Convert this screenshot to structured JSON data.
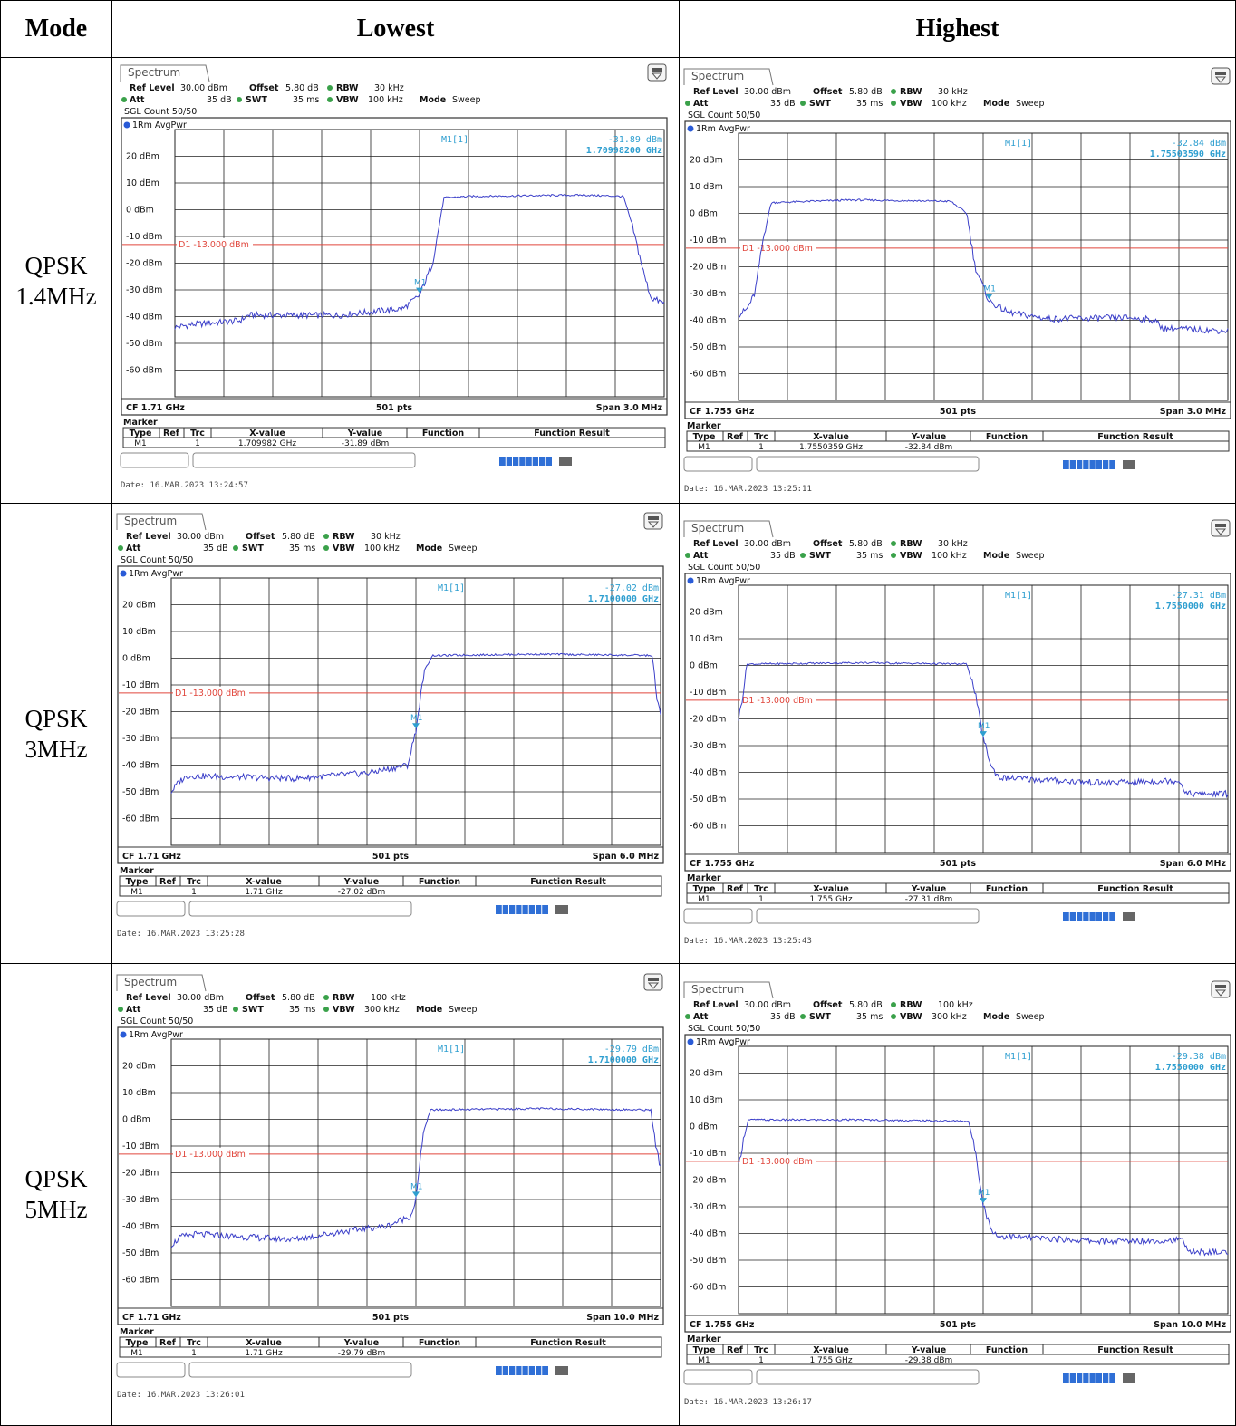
{
  "header": {
    "mode": "Mode",
    "lowest": "Lowest",
    "highest": "Highest"
  },
  "colors": {
    "trace": "#3b3fc9",
    "limit": "#e0463c",
    "marker": "#2f9fd0",
    "bar": "#2f6fd6",
    "grid": "#000000"
  },
  "rows": [
    {
      "mode": "QPSK\n1.4MHz",
      "panels": [
        {
          "tab": "Spectrum",
          "settings": {
            "ref_level_label": "Ref Level",
            "ref_level": "30.00 dBm",
            "offset_label": "Offset",
            "offset": "5.80 dB",
            "rbw_label": "RBW",
            "rbw": "30 kHz",
            "att_label": "Att",
            "att": "35 dB",
            "swt_label": "SWT",
            "swt": "35 ms",
            "vbw_label": "VBW",
            "vbw": "100 kHz",
            "mode_label": "Mode",
            "mode": "Sweep",
            "sgl": "SGL Count 50/50"
          },
          "trace_label": "1Rm AvgPwr",
          "marker_readout": {
            "name": "M1[1]",
            "level": "-31.89 dBm",
            "freq": "1.70998200 GHz"
          },
          "limit_label": "D1 -13.000 dBm",
          "y_ticks": [
            "20 dBm",
            "10 dBm",
            "0 dBm",
            "-10 dBm",
            "-20 dBm",
            "-30 dBm",
            "-40 dBm",
            "-50 dBm",
            "-60 dBm"
          ],
          "footer": {
            "cf": "CF 1.71 GHz",
            "pts": "501 pts",
            "span": "Span 3.0 MHz"
          },
          "marker_table": {
            "title": "Marker",
            "headers": [
              "Type",
              "Ref",
              "Trc",
              "X-value",
              "Y-value",
              "Function",
              "Function Result"
            ],
            "row": [
              "M1",
              "",
              "1",
              "1.709982 GHz",
              "-31.89 dBm",
              "",
              ""
            ]
          },
          "date": "Date: 16.MAR.2023  13:24:57",
          "chart_data": {
            "type": "line",
            "xlabel": "",
            "ylabel": "",
            "x_range": [
              -1.5,
              1.5
            ],
            "ylim": [
              -70,
              30
            ],
            "limit_line": -13,
            "marker": {
              "x": 0.0,
              "y": -31.89
            },
            "x": [
              -1.5,
              -1.1,
              -0.95,
              -0.1,
              0.0,
              0.1,
              0.15,
              1.5
            ],
            "values": [
              -44,
              -41,
              -39.5,
              -37,
              -32,
              -20,
              4.5,
              5.5
            ],
            "series": [
              {
                "name": "",
                "x": [
                  -1.5,
                  -1.4,
                  -1.1,
                  -1.05,
                  -0.5,
                  -0.1,
                  0.0,
                  0.08,
                  0.15,
                  0.3,
                  1.0,
                  1.25,
                  1.3,
                  1.38,
                  1.42,
                  1.5
                ],
                "y": [
                  -44,
                  -43,
                  -41.5,
                  -39.5,
                  -39.5,
                  -37,
                  -32,
                  -20,
                  4.5,
                  5,
                  5.5,
                  5,
                  -5,
                  -25,
                  -33,
                  -35
                ]
              }
            ]
          }
        },
        {
          "tab": "Spectrum",
          "settings": {
            "ref_level_label": "Ref Level",
            "ref_level": "30.00 dBm",
            "offset_label": "Offset",
            "offset": "5.80 dB",
            "rbw_label": "RBW",
            "rbw": "30 kHz",
            "att_label": "Att",
            "att": "35 dB",
            "swt_label": "SWT",
            "swt": "35 ms",
            "vbw_label": "VBW",
            "vbw": "100 kHz",
            "mode_label": "Mode",
            "mode": "Sweep",
            "sgl": "SGL Count 50/50"
          },
          "trace_label": "1Rm AvgPwr",
          "marker_readout": {
            "name": "M1[1]",
            "level": "-32.84 dBm",
            "freq": "1.75503590 GHz"
          },
          "limit_label": "D1 -13.000 dBm",
          "y_ticks": [
            "20 dBm",
            "10 dBm",
            "0 dBm",
            "-10 dBm",
            "-20 dBm",
            "-30 dBm",
            "-40 dBm",
            "-50 dBm",
            "-60 dBm"
          ],
          "footer": {
            "cf": "CF 1.755 GHz",
            "pts": "501 pts",
            "span": "Span 3.0 MHz"
          },
          "marker_table": {
            "title": "Marker",
            "headers": [
              "Type",
              "Ref",
              "Trc",
              "X-value",
              "Y-value",
              "Function",
              "Function Result"
            ],
            "row": [
              "M1",
              "",
              "1",
              "1.7550359 GHz",
              "-32.84 dBm",
              "",
              ""
            ]
          },
          "date": "Date: 16.MAR.2023  13:25:11",
          "chart_data": {
            "type": "line",
            "xlabel": "",
            "ylabel": "",
            "x_range": [
              -1.5,
              1.5
            ],
            "ylim": [
              -70,
              30
            ],
            "limit_line": -13,
            "marker": {
              "x": 0.036,
              "y": -32.84
            },
            "series": [
              {
                "name": "",
                "x": [
                  -1.5,
                  -1.45,
                  -1.4,
                  -1.35,
                  -1.3,
                  -0.8,
                  -0.2,
                  -0.1,
                  -0.05,
                  0.036,
                  0.15,
                  0.4,
                  0.9,
                  1.05,
                  1.1,
                  1.5
                ],
                "y": [
                  -38,
                  -36,
                  -30,
                  -10,
                  4,
                  5,
                  4.5,
                  0,
                  -20,
                  -32.84,
                  -37,
                  -39.5,
                  -39,
                  -40,
                  -43,
                  -44
                ]
              }
            ]
          }
        }
      ]
    },
    {
      "mode": "QPSK\n3MHz",
      "panels": [
        {
          "tab": "Spectrum",
          "settings": {
            "ref_level_label": "Ref Level",
            "ref_level": "30.00 dBm",
            "offset_label": "Offset",
            "offset": "5.80 dB",
            "rbw_label": "RBW",
            "rbw": "30 kHz",
            "att_label": "Att",
            "att": "35 dB",
            "swt_label": "SWT",
            "swt": "35 ms",
            "vbw_label": "VBW",
            "vbw": "100 kHz",
            "mode_label": "Mode",
            "mode": "Sweep",
            "sgl": "SGL Count 50/50"
          },
          "trace_label": "1Rm AvgPwr",
          "marker_readout": {
            "name": "M1[1]",
            "level": "-27.02 dBm",
            "freq": "1.7100000 GHz"
          },
          "limit_label": "D1 -13.000 dBm",
          "y_ticks": [
            "20 dBm",
            "10 dBm",
            "0 dBm",
            "-10 dBm",
            "-20 dBm",
            "-30 dBm",
            "-40 dBm",
            "-50 dBm",
            "-60 dBm"
          ],
          "footer": {
            "cf": "CF 1.71 GHz",
            "pts": "501 pts",
            "span": "Span 6.0 MHz"
          },
          "marker_table": {
            "title": "Marker",
            "headers": [
              "Type",
              "Ref",
              "Trc",
              "X-value",
              "Y-value",
              "Function",
              "Function Result"
            ],
            "row": [
              "M1",
              "",
              "1",
              "1.71 GHz",
              "-27.02 dBm",
              "",
              ""
            ]
          },
          "date": "Date: 16.MAR.2023  13:25:28",
          "chart_data": {
            "type": "line",
            "xlabel": "",
            "ylabel": "",
            "x_range": [
              -3,
              3
            ],
            "ylim": [
              -70,
              30
            ],
            "limit_line": -13,
            "marker": {
              "x": 0.0,
              "y": -27.02
            },
            "series": [
              {
                "name": "",
                "x": [
                  -3,
                  -2.9,
                  -2.8,
                  -1.5,
                  -0.6,
                  -0.1,
                  0.0,
                  0.1,
                  0.2,
                  1.5,
                  2.9,
                  2.95,
                  3.0
                ],
                "y": [
                  -50,
                  -46,
                  -44,
                  -45,
                  -43,
                  -40,
                  -27,
                  -5,
                  1,
                  1.5,
                  1,
                  -15,
                  -20
                ]
              }
            ]
          }
        },
        {
          "tab": "Spectrum",
          "settings": {
            "ref_level_label": "Ref Level",
            "ref_level": "30.00 dBm",
            "offset_label": "Offset",
            "offset": "5.80 dB",
            "rbw_label": "RBW",
            "rbw": "30 kHz",
            "att_label": "Att",
            "att": "35 dB",
            "swt_label": "SWT",
            "swt": "35 ms",
            "vbw_label": "VBW",
            "vbw": "100 kHz",
            "mode_label": "Mode",
            "mode": "Sweep",
            "sgl": "SGL Count 50/50"
          },
          "trace_label": "1Rm AvgPwr",
          "marker_readout": {
            "name": "M1[1]",
            "level": "-27.31 dBm",
            "freq": "1.7550000 GHz"
          },
          "limit_label": "D1 -13.000 dBm",
          "y_ticks": [
            "20 dBm",
            "10 dBm",
            "0 dBm",
            "-10 dBm",
            "-20 dBm",
            "-30 dBm",
            "-40 dBm",
            "-50 dBm",
            "-60 dBm"
          ],
          "footer": {
            "cf": "CF 1.755 GHz",
            "pts": "501 pts",
            "span": "Span 6.0 MHz"
          },
          "marker_table": {
            "title": "Marker",
            "headers": [
              "Type",
              "Ref",
              "Trc",
              "X-value",
              "Y-value",
              "Function",
              "Function Result"
            ],
            "row": [
              "M1",
              "",
              "1",
              "1.755 GHz",
              "-27.31 dBm",
              "",
              ""
            ]
          },
          "date": "Date: 16.MAR.2023  13:25:43",
          "chart_data": {
            "type": "line",
            "xlabel": "",
            "ylabel": "",
            "x_range": [
              -3,
              3
            ],
            "ylim": [
              -70,
              30
            ],
            "limit_line": -13,
            "marker": {
              "x": 0.0,
              "y": -27.31
            },
            "series": [
              {
                "name": "",
                "x": [
                  -3,
                  -2.95,
                  -2.9,
                  -1.5,
                  -0.2,
                  -0.1,
                  0.0,
                  0.1,
                  0.2,
                  1.5,
                  2.4,
                  2.5,
                  3.0
                ],
                "y": [
                  -20,
                  -12,
                  0.5,
                  1,
                  0.5,
                  -10,
                  -27,
                  -38,
                  -42,
                  -44,
                  -43,
                  -48,
                  -48
                ]
              }
            ]
          }
        }
      ]
    },
    {
      "mode": "QPSK\n5MHz",
      "panels": [
        {
          "tab": "Spectrum",
          "settings": {
            "ref_level_label": "Ref Level",
            "ref_level": "30.00 dBm",
            "offset_label": "Offset",
            "offset": "5.80 dB",
            "rbw_label": "RBW",
            "rbw": "100 kHz",
            "att_label": "Att",
            "att": "35 dB",
            "swt_label": "SWT",
            "swt": "35 ms",
            "vbw_label": "VBW",
            "vbw": "300 kHz",
            "mode_label": "Mode",
            "mode": "Sweep",
            "sgl": "SGL Count 50/50"
          },
          "trace_label": "1Rm AvgPwr",
          "marker_readout": {
            "name": "M1[1]",
            "level": "-29.79 dBm",
            "freq": "1.7100000 GHz"
          },
          "limit_label": "D1 -13.000 dBm",
          "y_ticks": [
            "20 dBm",
            "10 dBm",
            "0 dBm",
            "-10 dBm",
            "-20 dBm",
            "-30 dBm",
            "-40 dBm",
            "-50 dBm",
            "-60 dBm"
          ],
          "footer": {
            "cf": "CF 1.71 GHz",
            "pts": "501 pts",
            "span": "Span 10.0 MHz"
          },
          "marker_table": {
            "title": "Marker",
            "headers": [
              "Type",
              "Ref",
              "Trc",
              "X-value",
              "Y-value",
              "Function",
              "Function Result"
            ],
            "row": [
              "M1",
              "",
              "1",
              "1.71 GHz",
              "-29.79 dBm",
              "",
              ""
            ]
          },
          "date": "Date: 16.MAR.2023  13:26:01",
          "chart_data": {
            "type": "line",
            "xlabel": "",
            "ylabel": "",
            "x_range": [
              -5,
              5
            ],
            "ylim": [
              -70,
              30
            ],
            "limit_line": -13,
            "marker": {
              "x": 0.0,
              "y": -29.79
            },
            "series": [
              {
                "name": "",
                "x": [
                  -5,
                  -4.8,
                  -4.5,
                  -2.5,
                  -1.5,
                  -0.6,
                  -0.1,
                  0.0,
                  0.15,
                  0.3,
                  2.5,
                  4.8,
                  4.9,
                  5.0
                ],
                "y": [
                  -47,
                  -44,
                  -43,
                  -45,
                  -42,
                  -40,
                  -36,
                  -30,
                  -5,
                  3.5,
                  4,
                  3.5,
                  -10,
                  -18
                ]
              }
            ]
          }
        },
        {
          "tab": "Spectrum",
          "settings": {
            "ref_level_label": "Ref Level",
            "ref_level": "30.00 dBm",
            "offset_label": "Offset",
            "offset": "5.80 dB",
            "rbw_label": "RBW",
            "rbw": "100 kHz",
            "att_label": "Att",
            "att": "35 dB",
            "swt_label": "SWT",
            "swt": "35 ms",
            "vbw_label": "VBW",
            "vbw": "300 kHz",
            "mode_label": "Mode",
            "mode": "Sweep",
            "sgl": "SGL Count 50/50"
          },
          "trace_label": "1Rm AvgPwr",
          "marker_readout": {
            "name": "M1[1]",
            "level": "-29.38 dBm",
            "freq": "1.7550000 GHz"
          },
          "limit_label": "D1 -13.000 dBm",
          "y_ticks": [
            "20 dBm",
            "10 dBm",
            "0 dBm",
            "-10 dBm",
            "-20 dBm",
            "-30 dBm",
            "-40 dBm",
            "-50 dBm",
            "-60 dBm"
          ],
          "footer": {
            "cf": "CF 1.755 GHz",
            "pts": "501 pts",
            "span": "Span 10.0 MHz"
          },
          "marker_table": {
            "title": "Marker",
            "headers": [
              "Type",
              "Ref",
              "Trc",
              "X-value",
              "Y-value",
              "Function",
              "Function Result"
            ],
            "row": [
              "M1",
              "",
              "1",
              "1.755 GHz",
              "-29.38 dBm",
              "",
              ""
            ]
          },
          "date": "Date: 16.MAR.2023  13:26:17",
          "chart_data": {
            "type": "line",
            "xlabel": "",
            "ylabel": "",
            "x_range": [
              -5,
              5
            ],
            "ylim": [
              -70,
              30
            ],
            "limit_line": -13,
            "marker": {
              "x": 0.0,
              "y": -29.38
            },
            "series": [
              {
                "name": "",
                "x": [
                  -5,
                  -4.9,
                  -4.8,
                  -2.5,
                  -0.3,
                  -0.15,
                  0.0,
                  0.15,
                  0.3,
                  2.5,
                  4.1,
                  4.2,
                  5.0
                ],
                "y": [
                  -15,
                  -5,
                  2.5,
                  2.5,
                  2,
                  -10,
                  -29,
                  -38,
                  -41,
                  -43,
                  -42.5,
                  -47,
                  -47
                ]
              }
            ]
          }
        }
      ]
    }
  ]
}
